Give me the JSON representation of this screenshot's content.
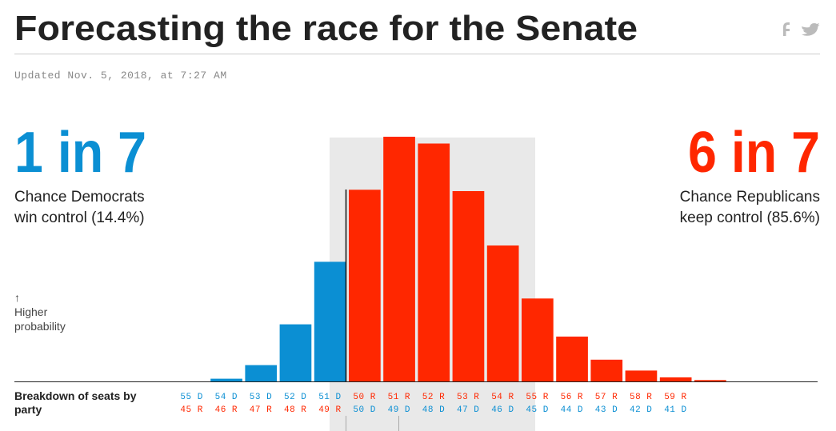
{
  "header": {
    "title": "Forecasting the race for the Senate",
    "updated": "Updated Nov. 5, 2018, at 7:27 AM"
  },
  "democrats": {
    "odds": "1 in 7",
    "caption": [
      "Chance Democrats",
      "win control (14.4%)"
    ],
    "color": "#0b8fd3"
  },
  "republicans": {
    "odds": "6 in 7",
    "caption": [
      "Chance Republicans",
      "keep control (85.6%)"
    ],
    "color": "#ff2700"
  },
  "chart_data": {
    "type": "bar",
    "y_axis_label": [
      "↑",
      "Higher",
      "probability"
    ],
    "x_axis_label": [
      "Breakdown of seats by",
      "party"
    ],
    "categories": [
      [
        "55 D",
        "45 R"
      ],
      [
        "54 D",
        "46 R"
      ],
      [
        "53 D",
        "47 R"
      ],
      [
        "52 D",
        "48 R"
      ],
      [
        "51 D",
        "49 R"
      ],
      [
        "50 R",
        "50 D"
      ],
      [
        "51 R",
        "49 D"
      ],
      [
        "52 R",
        "48 D"
      ],
      [
        "53 R",
        "47 D"
      ],
      [
        "54 R",
        "46 D"
      ],
      [
        "55 R",
        "45 D"
      ],
      [
        "56 R",
        "44 D"
      ],
      [
        "57 R",
        "43 D"
      ],
      [
        "58 R",
        "42 D"
      ],
      [
        "59 R",
        "41 D"
      ],
      null
    ],
    "values": [
      0,
      0.2,
      1.2,
      4.2,
      8.8,
      14.1,
      18.0,
      17.5,
      14.0,
      10.0,
      6.1,
      3.3,
      1.6,
      0.8,
      0.3,
      0.1
    ],
    "colors": [
      "#0b8fd3",
      "#0b8fd3",
      "#0b8fd3",
      "#0b8fd3",
      "#0b8fd3",
      "#ff2700",
      "#ff2700",
      "#ff2700",
      "#ff2700",
      "#ff2700",
      "#ff2700",
      "#ff2700",
      "#ff2700",
      "#ff2700",
      "#ff2700",
      "#ff2700"
    ],
    "ylim": [
      0,
      20
    ]
  }
}
